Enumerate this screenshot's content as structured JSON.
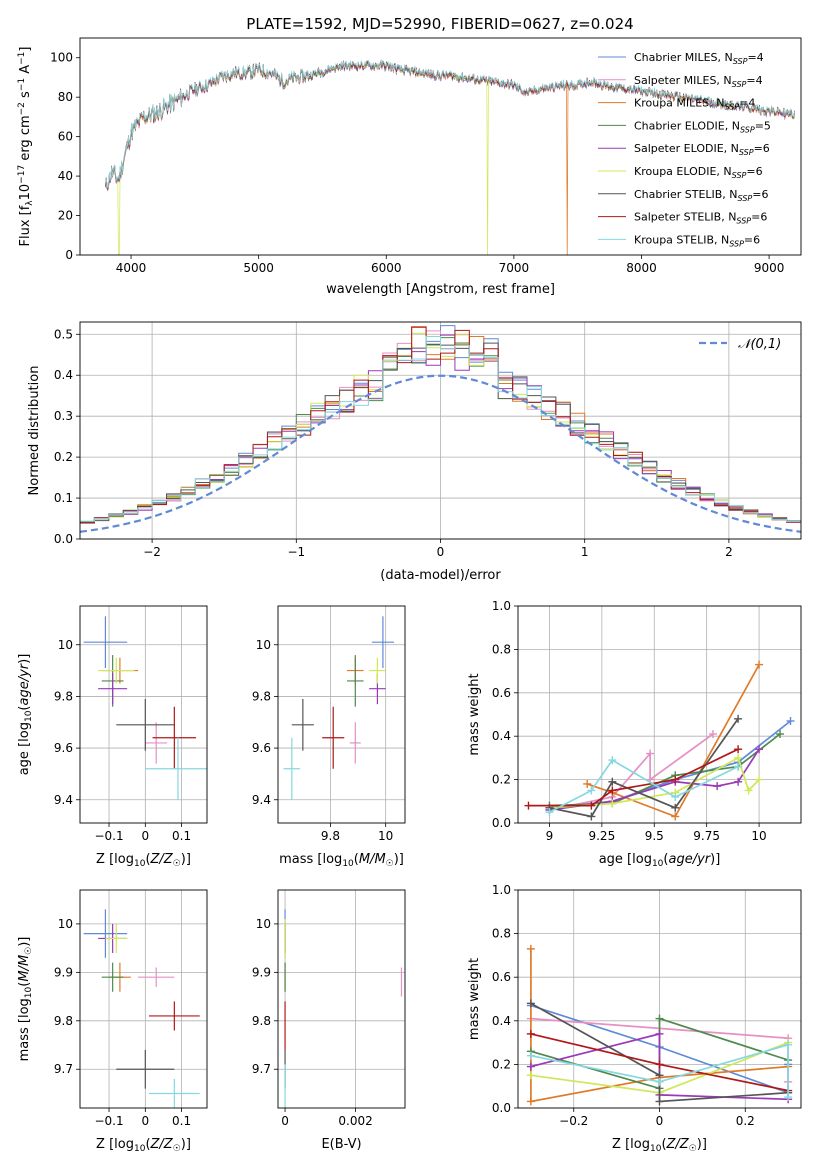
{
  "figure": {
    "title": "PLATE=1592, MJD=52990, FIBERID=0627, z=0.024",
    "ssp_models": [
      {
        "name": "Chabrier MILES",
        "nssp": "4",
        "color": "#5f8ad8"
      },
      {
        "name": "Salpeter MILES",
        "nssp": "4",
        "color": "#e690c4"
      },
      {
        "name": "Kroupa MILES",
        "nssp": "4",
        "color": "#e07a28"
      },
      {
        "name": "Chabrier ELODIE",
        "nssp": "5",
        "color": "#4e8a4e"
      },
      {
        "name": "Salpeter ELODIE",
        "nssp": "6",
        "color": "#9a38b8"
      },
      {
        "name": "Kroupa ELODIE",
        "nssp": "6",
        "color": "#cfe858"
      },
      {
        "name": "Chabrier STELIB",
        "nssp": "6",
        "color": "#555555"
      },
      {
        "name": "Salpeter STELIB",
        "nssp": "6",
        "color": "#b01818"
      },
      {
        "name": "Kroupa STELIB",
        "nssp": "6",
        "color": "#86d8e0"
      }
    ]
  },
  "chart_data": [
    {
      "id": "spectrum",
      "type": "line",
      "xlabel": "wavelength [Angstrom, rest frame]",
      "ylabel": "Flux [f_λ 10^-17 erg cm^-2 s^-1 A^-1]",
      "xlim": [
        3600,
        9250
      ],
      "ylim": [
        0,
        110
      ],
      "xticks": [
        4000,
        5000,
        6000,
        7000,
        8000,
        9000
      ],
      "yticks": [
        0,
        20,
        40,
        60,
        80,
        100
      ],
      "legend": "right",
      "x": [
        3800,
        3850,
        3900,
        3950,
        4000,
        4100,
        4200,
        4300,
        4400,
        4500,
        4600,
        4700,
        4800,
        4900,
        5000,
        5100,
        5200,
        5300,
        5400,
        5500,
        5600,
        5700,
        5800,
        5900,
        6000,
        6100,
        6200,
        6300,
        6400,
        6500,
        6600,
        6700,
        6800,
        6900,
        7000,
        7100,
        7200,
        7300,
        7400,
        7500,
        7600,
        7700,
        7800,
        7900,
        8000,
        8200,
        8400,
        8600,
        8800,
        9000,
        9200
      ],
      "y": [
        34,
        42,
        38,
        50,
        62,
        70,
        72,
        76,
        80,
        84,
        86,
        90,
        92,
        92,
        94,
        92,
        88,
        90,
        91,
        93,
        95,
        96,
        96,
        96,
        96,
        94,
        93,
        92,
        91,
        91,
        90,
        89,
        88,
        87,
        86,
        82,
        84,
        85,
        86,
        86,
        88,
        86,
        85,
        84,
        83,
        81,
        79,
        77,
        75,
        73,
        71
      ],
      "dropouts": [
        {
          "x": 3905,
          "series": "Kroupa ELODIE"
        },
        {
          "x": 6795,
          "series": "Kroupa ELODIE"
        },
        {
          "x": 7420,
          "series": "Kroupa MILES"
        }
      ]
    },
    {
      "id": "residuals",
      "type": "bar",
      "xlabel": "(data-model)/error",
      "ylabel": "Normed distribution",
      "xlim": [
        -2.5,
        2.5
      ],
      "ylim": [
        0,
        0.53
      ],
      "xticks": [
        -2,
        -1,
        0,
        1,
        2
      ],
      "yticks": [
        0.0,
        0.1,
        0.2,
        0.3,
        0.4,
        0.5
      ],
      "grid": true,
      "legend": "top-right",
      "reference": {
        "label": "𝒩(0,1)",
        "mean": 0,
        "sigma": 1,
        "color": "#5f8ad8"
      },
      "bin_width": 0.1
    },
    {
      "id": "age-vs-Z",
      "type": "scatter",
      "xlabel": "Z [log10(Z/Z☉)]",
      "ylabel": "age  [log10(age/yr)]",
      "xlim": [
        -0.18,
        0.17
      ],
      "ylim": [
        9.31,
        10.15
      ],
      "xticks": [
        -0.1,
        0.0,
        0.1
      ],
      "yticks": [
        9.4,
        9.6,
        9.8,
        10.0
      ],
      "points": [
        {
          "series": "Chabrier MILES",
          "x": -0.11,
          "y": 10.01,
          "xerr": 0.06,
          "yerr": 0.1
        },
        {
          "series": "Salpeter MILES",
          "x": 0.03,
          "y": 9.62,
          "xerr": 0.03,
          "yerr": 0.08
        },
        {
          "series": "Kroupa MILES",
          "x": -0.07,
          "y": 9.9,
          "xerr": 0.05,
          "yerr": 0.05
        },
        {
          "series": "Chabrier ELODIE",
          "x": -0.09,
          "y": 9.86,
          "xerr": 0.03,
          "yerr": 0.1
        },
        {
          "series": "Salpeter ELODIE",
          "x": -0.09,
          "y": 9.83,
          "xerr": 0.04,
          "yerr": 0.06
        },
        {
          "series": "Kroupa ELODIE",
          "x": -0.08,
          "y": 9.9,
          "xerr": 0.05,
          "yerr": 0.05
        },
        {
          "series": "Chabrier STELIB",
          "x": 0.0,
          "y": 9.69,
          "xerr": 0.08,
          "yerr": 0.1
        },
        {
          "series": "Salpeter STELIB",
          "x": 0.08,
          "y": 9.64,
          "xerr": 0.06,
          "yerr": 0.12
        },
        {
          "series": "Kroupa STELIB",
          "x": 0.09,
          "y": 9.52,
          "xerr": 0.09,
          "yerr": 0.12
        }
      ]
    },
    {
      "id": "age-vs-mass",
      "type": "scatter",
      "xlabel": "mass [log10(M/M☉)]",
      "ylabel": "",
      "xlim": [
        9.61,
        10.07
      ],
      "ylim": [
        9.31,
        10.15
      ],
      "xticks": [
        9.8,
        10.0
      ],
      "yticks": [
        9.4,
        9.6,
        9.8,
        10.0
      ],
      "points": [
        {
          "series": "Chabrier MILES",
          "x": 9.99,
          "y": 10.01,
          "xerr": 0.04,
          "yerr": 0.1
        },
        {
          "series": "Salpeter MILES",
          "x": 9.89,
          "y": 9.62,
          "xerr": 0.02,
          "yerr": 0.08
        },
        {
          "series": "Kroupa MILES",
          "x": 9.89,
          "y": 9.9,
          "xerr": 0.03,
          "yerr": 0.05
        },
        {
          "series": "Chabrier ELODIE",
          "x": 9.89,
          "y": 9.86,
          "xerr": 0.03,
          "yerr": 0.1
        },
        {
          "series": "Salpeter ELODIE",
          "x": 9.97,
          "y": 9.83,
          "xerr": 0.03,
          "yerr": 0.06
        },
        {
          "series": "Kroupa ELODIE",
          "x": 9.97,
          "y": 9.9,
          "xerr": 0.03,
          "yerr": 0.05
        },
        {
          "series": "Chabrier STELIB",
          "x": 9.7,
          "y": 9.69,
          "xerr": 0.04,
          "yerr": 0.1
        },
        {
          "series": "Salpeter STELIB",
          "x": 9.81,
          "y": 9.64,
          "xerr": 0.04,
          "yerr": 0.12
        },
        {
          "series": "Kroupa STELIB",
          "x": 9.66,
          "y": 9.52,
          "xerr": 0.03,
          "yerr": 0.12
        }
      ]
    },
    {
      "id": "weight-vs-age",
      "type": "line",
      "xlabel": "age  [log10(age/yr)]",
      "ylabel": "mass weight",
      "xlim": [
        8.85,
        10.2
      ],
      "ylim": [
        0,
        1
      ],
      "xticks": [
        9.0,
        9.25,
        9.5,
        9.75,
        10.0
      ],
      "yticks": [
        0.0,
        0.2,
        0.4,
        0.6,
        0.8,
        1.0
      ],
      "grid": true,
      "series": [
        {
          "name": "Chabrier MILES",
          "x": [
            9.0,
            9.3,
            9.6,
            9.9,
            10.15
          ],
          "y": [
            0.07,
            0.1,
            0.2,
            0.28,
            0.47
          ]
        },
        {
          "name": "Salpeter MILES",
          "x": [
            9.0,
            9.3,
            9.48,
            9.48,
            9.78
          ],
          "y": [
            0.06,
            0.12,
            0.32,
            0.2,
            0.41
          ]
        },
        {
          "name": "Kroupa MILES",
          "x": [
            9.18,
            9.3,
            9.6,
            10.0
          ],
          "y": [
            0.18,
            0.14,
            0.03,
            0.73
          ]
        },
        {
          "name": "Chabrier ELODIE",
          "x": [
            9.0,
            9.3,
            9.6,
            9.9,
            10.1
          ],
          "y": [
            0.08,
            0.09,
            0.22,
            0.26,
            0.41
          ]
        },
        {
          "name": "Salpeter ELODIE",
          "x": [
            9.0,
            9.3,
            9.6,
            9.8,
            9.9,
            10.0
          ],
          "y": [
            0.06,
            0.1,
            0.19,
            0.17,
            0.19,
            0.34
          ]
        },
        {
          "name": "Kroupa ELODIE",
          "x": [
            9.0,
            9.3,
            9.6,
            9.9,
            9.95,
            10.0
          ],
          "y": [
            0.07,
            0.09,
            0.14,
            0.3,
            0.15,
            0.2
          ]
        },
        {
          "name": "Chabrier STELIB",
          "x": [
            9.0,
            9.2,
            9.3,
            9.6,
            9.9
          ],
          "y": [
            0.07,
            0.03,
            0.19,
            0.07,
            0.48
          ]
        },
        {
          "name": "Salpeter STELIB",
          "x": [
            8.9,
            9.2,
            9.3,
            9.6,
            9.9
          ],
          "y": [
            0.08,
            0.08,
            0.15,
            0.2,
            0.34
          ]
        },
        {
          "name": "Kroupa STELIB",
          "x": [
            9.0,
            9.2,
            9.3,
            9.6,
            9.9
          ],
          "y": [
            0.05,
            0.15,
            0.29,
            0.12,
            0.26
          ]
        }
      ]
    },
    {
      "id": "mass-vs-Z",
      "type": "scatter",
      "xlabel": "Z [log10(Z/Z☉)]",
      "ylabel": "mass [log10(M/M☉)]",
      "xlim": [
        -0.18,
        0.17
      ],
      "ylim": [
        9.62,
        10.07
      ],
      "xticks": [
        -0.1,
        0.0,
        0.1
      ],
      "yticks": [
        9.7,
        9.8,
        9.9,
        10.0
      ],
      "points": [
        {
          "series": "Chabrier MILES",
          "x": -0.11,
          "y": 9.98,
          "xerr": 0.06,
          "yerr": 0.05
        },
        {
          "series": "Salpeter MILES",
          "x": 0.03,
          "y": 9.89,
          "xerr": 0.05,
          "yerr": 0.02
        },
        {
          "series": "Kroupa MILES",
          "x": -0.07,
          "y": 9.89,
          "xerr": 0.03,
          "yerr": 0.03
        },
        {
          "series": "Chabrier ELODIE",
          "x": -0.09,
          "y": 9.89,
          "xerr": 0.03,
          "yerr": 0.03
        },
        {
          "series": "Salpeter ELODIE",
          "x": -0.09,
          "y": 9.97,
          "xerr": 0.04,
          "yerr": 0.03
        },
        {
          "series": "Kroupa ELODIE",
          "x": -0.08,
          "y": 9.97,
          "xerr": 0.03,
          "yerr": 0.03
        },
        {
          "series": "Chabrier STELIB",
          "x": 0.0,
          "y": 9.7,
          "xerr": 0.08,
          "yerr": 0.04
        },
        {
          "series": "Salpeter STELIB",
          "x": 0.08,
          "y": 9.81,
          "xerr": 0.07,
          "yerr": 0.03
        },
        {
          "series": "Kroupa STELIB",
          "x": 0.08,
          "y": 9.65,
          "xerr": 0.07,
          "yerr": 0.03
        }
      ]
    },
    {
      "id": "mass-vs-ebv",
      "type": "scatter",
      "xlabel": "E(B-V)",
      "ylabel": "",
      "xlim": [
        -0.0002,
        0.0034
      ],
      "ylim": [
        9.62,
        10.07
      ],
      "xticks": [
        0.0,
        0.002
      ],
      "yticks": [
        9.7,
        9.8,
        9.9,
        10.0
      ],
      "points": [
        {
          "series": "Chabrier MILES",
          "x": 0.0,
          "y": 9.98,
          "xerr": 0,
          "yerr": 0.05
        },
        {
          "series": "Salpeter MILES",
          "x": 0.0033,
          "y": 9.88,
          "xerr": 0,
          "yerr": 0.03
        },
        {
          "series": "Kroupa MILES",
          "x": 0.0,
          "y": 9.89,
          "xerr": 0,
          "yerr": 0.03
        },
        {
          "series": "Chabrier ELODIE",
          "x": 0.0,
          "y": 9.89,
          "xerr": 0,
          "yerr": 0.03
        },
        {
          "series": "Salpeter ELODIE",
          "x": 0.0,
          "y": 9.97,
          "xerr": 0,
          "yerr": 0.03
        },
        {
          "series": "Kroupa ELODIE",
          "x": 0.0,
          "y": 9.97,
          "xerr": 0,
          "yerr": 0.04
        },
        {
          "series": "Chabrier STELIB",
          "x": 0.0,
          "y": 9.7,
          "xerr": 0,
          "yerr": 0.04
        },
        {
          "series": "Salpeter STELIB",
          "x": 0.0,
          "y": 9.79,
          "xerr": 0,
          "yerr": 0.05
        },
        {
          "series": "Kroupa STELIB",
          "x": 0.0,
          "y": 9.66,
          "xerr": 0,
          "yerr": 0.05
        }
      ]
    },
    {
      "id": "weight-vs-Z",
      "type": "line",
      "xlabel": "Z [log10(Z/Z☉)]",
      "ylabel": "mass weight",
      "xlim": [
        -0.33,
        0.33
      ],
      "ylim": [
        0,
        1
      ],
      "xticks": [
        -0.2,
        0.0,
        0.2
      ],
      "yticks": [
        0.0,
        0.2,
        0.4,
        0.6,
        0.8,
        1.0
      ],
      "grid": true,
      "series": [
        {
          "name": "Chabrier MILES",
          "x": [
            -0.3,
            0.0,
            0.3,
            0.3
          ],
          "y": [
            0.47,
            0.28,
            0.07,
            0.2
          ]
        },
        {
          "name": "Salpeter MILES",
          "x": [
            -0.3,
            0.3,
            0.3
          ],
          "y": [
            0.41,
            0.32,
            0.12
          ]
        },
        {
          "name": "Kroupa MILES",
          "x": [
            -0.3,
            -0.3,
            0.0,
            0.3
          ],
          "y": [
            0.73,
            0.03,
            0.14,
            0.19
          ]
        },
        {
          "name": "Chabrier ELODIE",
          "x": [
            -0.3,
            0.0,
            0.0,
            0.3
          ],
          "y": [
            0.26,
            0.09,
            0.41,
            0.22
          ]
        },
        {
          "name": "Salpeter ELODIE",
          "x": [
            -0.3,
            0.0,
            0.0,
            0.3
          ],
          "y": [
            0.19,
            0.34,
            0.06,
            0.04
          ]
        },
        {
          "name": "Kroupa ELODIE",
          "x": [
            -0.3,
            0.0,
            0.3
          ],
          "y": [
            0.15,
            0.07,
            0.3
          ]
        },
        {
          "name": "Chabrier STELIB",
          "x": [
            -0.3,
            0.0,
            0.0,
            0.3
          ],
          "y": [
            0.48,
            0.15,
            0.03,
            0.07
          ]
        },
        {
          "name": "Salpeter STELIB",
          "x": [
            -0.3,
            0.0,
            0.3
          ],
          "y": [
            0.34,
            0.2,
            0.08
          ]
        },
        {
          "name": "Kroupa STELIB",
          "x": [
            -0.3,
            0.0,
            0.3,
            0.3
          ],
          "y": [
            0.24,
            0.12,
            0.29,
            0.05
          ]
        }
      ]
    }
  ]
}
